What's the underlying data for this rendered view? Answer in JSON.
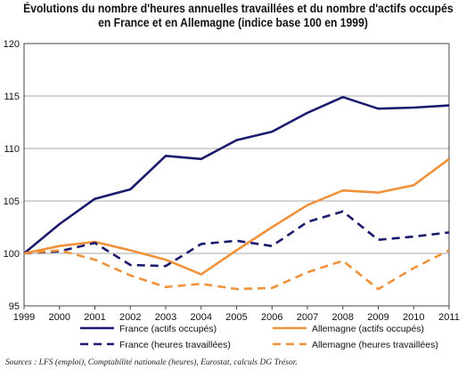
{
  "chart_data": {
    "type": "line",
    "title_lines": [
      "Évolutions du nombre d'heures annuelles travaillées et du nombre d'actifs occupés",
      "en France et en Allemagne (indice base 100 en 1999)"
    ],
    "x": [
      "1999",
      "2000",
      "2001",
      "2002",
      "2003",
      "2004",
      "2005",
      "2006",
      "2007",
      "2008",
      "2009",
      "2010",
      "2011"
    ],
    "ylim": [
      95,
      120
    ],
    "yticks": [
      95,
      100,
      105,
      110,
      115,
      120
    ],
    "grid": true,
    "legend_position": "bottom",
    "series": [
      {
        "name": "France (actifs occupés)",
        "color": "#1a1a6e",
        "dash": "solid",
        "values": [
          100,
          102.8,
          105.2,
          106.1,
          109.3,
          109.0,
          110.8,
          111.6,
          113.4,
          114.9,
          113.8,
          113.9,
          114.1
        ]
      },
      {
        "name": "Allemagne (actifs occupés)",
        "color": "#f0923a",
        "dash": "solid",
        "values": [
          100,
          100.7,
          101.1,
          100.3,
          99.4,
          98.0,
          100.3,
          102.5,
          104.6,
          106.0,
          105.8,
          106.5,
          109.0
        ]
      },
      {
        "name": "France (heures travaillées)",
        "color": "#1a1a6e",
        "dash": "dashed",
        "values": [
          100,
          100.2,
          101.0,
          98.9,
          98.8,
          100.9,
          101.2,
          100.7,
          103.0,
          104.0,
          101.3,
          101.6,
          102.0
        ]
      },
      {
        "name": "Allemagne (heures travaillées)",
        "color": "#f0923a",
        "dash": "dashed",
        "values": [
          100,
          100.3,
          99.4,
          97.9,
          96.8,
          97.1,
          96.6,
          96.7,
          98.2,
          99.3,
          96.6,
          98.6,
          100.3
        ]
      }
    ],
    "source": "Sources : LFS (emploi), Comptabilité nationale (heures), Eurostat, calculs DG Trésor."
  }
}
